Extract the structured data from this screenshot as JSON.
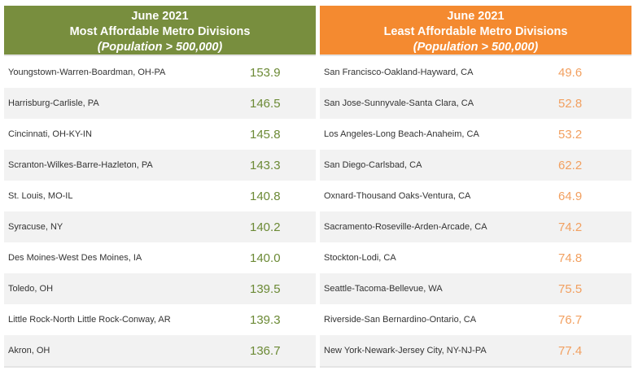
{
  "most_affordable": {
    "title_line1": "June 2021",
    "title_line2": "Most Affordable Metro Divisions",
    "title_line3": "(Population > 500,000)",
    "rows": [
      {
        "name": "Youngstown-Warren-Boardman, OH-PA",
        "value": "153.9"
      },
      {
        "name": "Harrisburg-Carlisle, PA",
        "value": "146.5"
      },
      {
        "name": "Cincinnati, OH-KY-IN",
        "value": "145.8"
      },
      {
        "name": "Scranton-Wilkes-Barre-Hazleton, PA",
        "value": "143.3"
      },
      {
        "name": "St. Louis, MO-IL",
        "value": "140.8"
      },
      {
        "name": "Syracuse, NY",
        "value": "140.2"
      },
      {
        "name": "Des Moines-West Des Moines, IA",
        "value": "140.0"
      },
      {
        "name": "Toledo, OH",
        "value": "139.5"
      },
      {
        "name": "Little Rock-North Little Rock-Conway, AR",
        "value": "139.3"
      },
      {
        "name": "Akron, OH",
        "value": "136.7"
      }
    ]
  },
  "least_affordable": {
    "title_line1": "June 2021",
    "title_line2": "Least Affordable Metro Divisions",
    "title_line3": "(Population > 500,000)",
    "rows": [
      {
        "name": "San Francisco-Oakland-Hayward, CA",
        "value": "49.6"
      },
      {
        "name": "San Jose-Sunnyvale-Santa Clara, CA",
        "value": "52.8"
      },
      {
        "name": "Los Angeles-Long Beach-Anaheim, CA",
        "value": "53.2"
      },
      {
        "name": "San Diego-Carlsbad, CA",
        "value": "62.2"
      },
      {
        "name": "Oxnard-Thousand Oaks-Ventura, CA",
        "value": "64.9"
      },
      {
        "name": "Sacramento-Roseville-Arden-Arcade, CA",
        "value": "74.2"
      },
      {
        "name": "Stockton-Lodi, CA",
        "value": "74.8"
      },
      {
        "name": "Seattle-Tacoma-Bellevue, WA",
        "value": "75.5"
      },
      {
        "name": "Riverside-San Bernardino-Ontario, CA",
        "value": "76.7"
      },
      {
        "name": "New York-Newark-Jersey City, NY-NJ-PA",
        "value": "77.4"
      }
    ]
  }
}
